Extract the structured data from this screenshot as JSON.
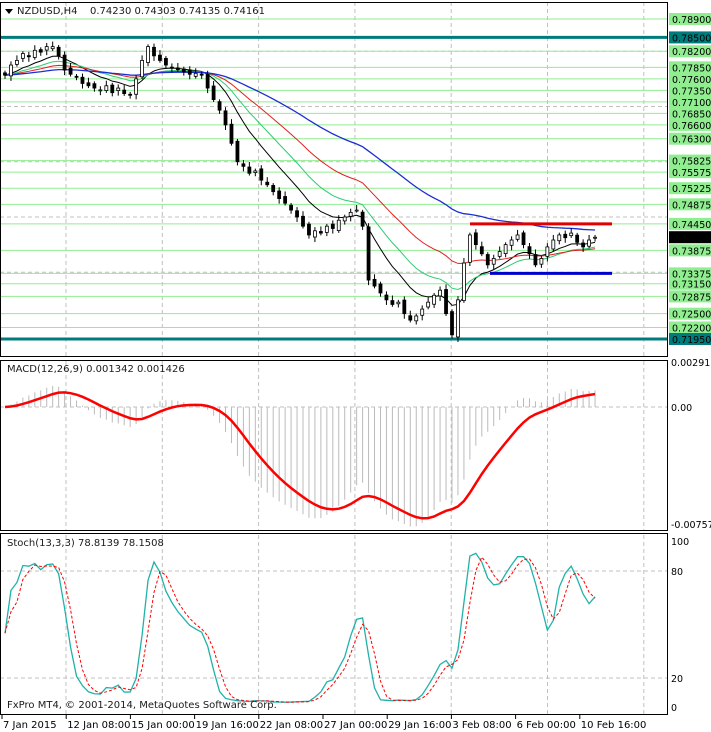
{
  "header": {
    "symbol": "NZDUSD,H4",
    "ohlc": "0.74230 0.74303 0.74135 0.74161"
  },
  "colors": {
    "level_line": "#90ee90",
    "key_level": "#007b7b",
    "resistance": "#e00000",
    "support": "#0000cc",
    "current_price_bg": "#000000",
    "ma_fast": "#000000",
    "ma_mid": "#2ecc71",
    "ma_slow": "#e02020",
    "ma_long": "#1a2fd0",
    "macd_hist": "#bbbbbb",
    "macd_signal": "#ff0000",
    "stoch_main": "#20b2aa",
    "stoch_signal": "#ff0000"
  },
  "chart_data": [
    {
      "type": "candlestick",
      "title": "NZDUSD,H4",
      "price_axis_labels": [
        "0.78900",
        "0.78500",
        "0.78200",
        "0.77850",
        "0.77600",
        "0.77350",
        "0.77100",
        "0.76850",
        "0.76600",
        "0.76300",
        "0.75825",
        "0.75575",
        "0.75225",
        "0.74875",
        "0.74450",
        "0.74161",
        "0.73875",
        "0.73375",
        "0.73150",
        "0.72875",
        "0.72500",
        "0.72200",
        "0.71950"
      ],
      "highlighted_levels": {
        "key": [
          "0.78500",
          "0.71950"
        ],
        "current": "0.74161"
      },
      "resistance": 0.7445,
      "support": 0.73375,
      "ylim": [
        0.7165,
        0.7932
      ],
      "time_labels": [
        "7 Jan 2015",
        "12 Jan 08:00",
        "15 Jan 00:00",
        "19 Jan 16:00",
        "22 Jan 08:00",
        "27 Jan 00:00",
        "29 Jan 16:00",
        "3 Feb 08:00",
        "6 Feb 00:00",
        "10 Feb 16:00"
      ],
      "close": [
        0.7768,
        0.779,
        0.78,
        0.7815,
        0.7808,
        0.7822,
        0.7818,
        0.783,
        0.783,
        0.781,
        0.7779,
        0.777,
        0.7765,
        0.775,
        0.7745,
        0.774,
        0.7736,
        0.7745,
        0.773,
        0.774,
        0.7728,
        0.7725,
        0.776,
        0.78,
        0.783,
        0.781,
        0.78,
        0.779,
        0.7785,
        0.778,
        0.7775,
        0.777,
        0.7772,
        0.7768,
        0.774,
        0.7715,
        0.7692,
        0.766,
        0.762,
        0.758,
        0.757,
        0.7555,
        0.756,
        0.754,
        0.753,
        0.7515,
        0.75,
        0.749,
        0.7475,
        0.746,
        0.744,
        0.7421,
        0.743,
        0.7425,
        0.744,
        0.7435,
        0.7453,
        0.746,
        0.747,
        0.7475,
        0.744,
        0.7323,
        0.731,
        0.7295,
        0.728,
        0.727,
        0.7275,
        0.725,
        0.7236,
        0.7245,
        0.726,
        0.7275,
        0.729,
        0.7301,
        0.725,
        0.7204,
        0.728,
        0.736,
        0.7421,
        0.74,
        0.738,
        0.7356,
        0.737,
        0.7385,
        0.74,
        0.741,
        0.7421,
        0.74,
        0.738,
        0.7356,
        0.737,
        0.7395,
        0.741,
        0.7421,
        0.7415,
        0.7425,
        0.7405,
        0.7395,
        0.741,
        0.7416
      ]
    },
    {
      "type": "macd",
      "title": "MACD(12,26,9) 0.001342 0.001426",
      "axis_labels": [
        "0.002913",
        "0.00",
        "-0.007571"
      ],
      "ylim": [
        -0.007571,
        0.002913
      ]
    },
    {
      "type": "stochastic",
      "title": "Stoch(13,3,3) 78.8139 78.1508",
      "axis_labels": [
        "100",
        "80",
        "20",
        "0"
      ],
      "ylim": [
        0,
        100
      ]
    }
  ],
  "footer": {
    "copyright": "FxPro MT4, © 2001-2014, MetaQuotes Software Corp."
  }
}
